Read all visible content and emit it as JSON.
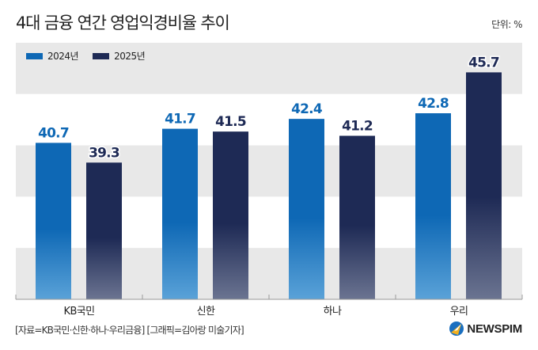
{
  "header": {
    "title": "4대 금융 연간 영업익경비율 추이",
    "unit": "단위: %"
  },
  "footer": {
    "source": "[자료=KB국민·신한·하나·우리금융] [그래픽=김아랑 미술기자]",
    "logo_text": "NEWSPIM",
    "logo_icon": "newspim-logo-icon"
  },
  "colors": {
    "series_2024": "#0e68b5",
    "series_2025": "#1e2a55",
    "band_gray": "#e8e8e8",
    "label_2024": "#0e68b5",
    "label_2025": "#1e2a55"
  },
  "chart_data": {
    "type": "bar",
    "title": "4대 금융 연간 영업익경비율 추이",
    "xlabel": "",
    "ylabel": "",
    "unit": "%",
    "categories": [
      "KB국민",
      "신한",
      "하나",
      "우리"
    ],
    "series": [
      {
        "name": "2024년",
        "values": [
          40.7,
          41.7,
          42.4,
          42.8
        ]
      },
      {
        "name": "2025년",
        "values": [
          39.3,
          41.5,
          41.2,
          45.7
        ]
      }
    ],
    "data_labels": [
      [
        "40.7",
        "41.7",
        "42.4",
        "42.8"
      ],
      [
        "39.3",
        "41.5",
        "41.2",
        "45.7"
      ]
    ],
    "ylim": [
      29.6,
      47.8
    ],
    "grid": "alternating horizontal bands",
    "legend_position": "top-left",
    "y_axis_visible": false
  }
}
